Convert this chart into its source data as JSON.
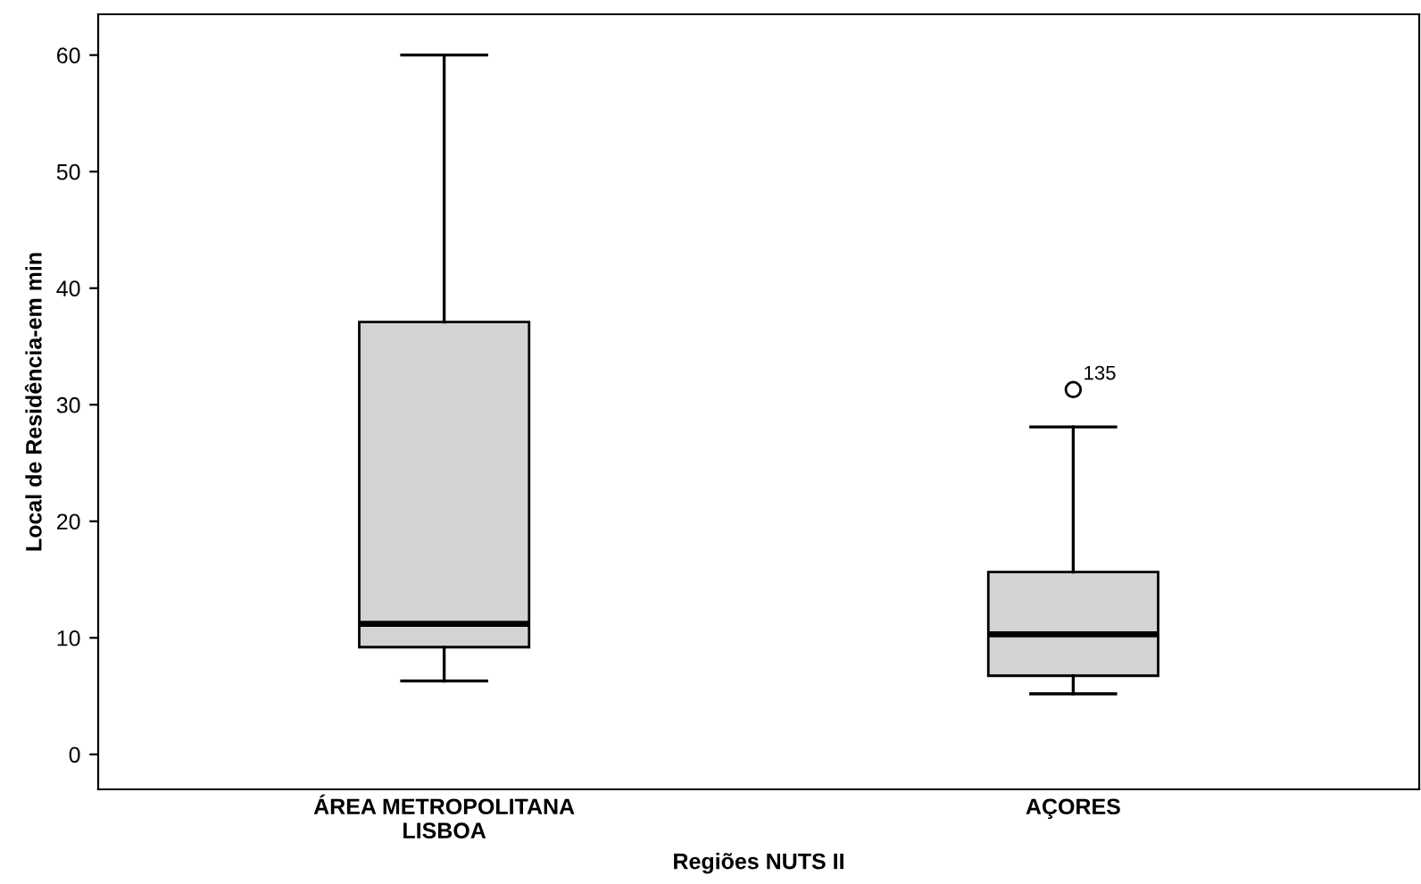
{
  "chart_data": {
    "type": "box",
    "xlabel": "Regiões NUTS II",
    "ylabel": "Local de Residência-em min",
    "categories": [
      "ÁREA METROPOLITANA\nLISBOA",
      "AÇORES"
    ],
    "boxes": [
      {
        "low": 6.3,
        "q1": 9.2,
        "median": 11.2,
        "q3": 37.1,
        "high": 60
      },
      {
        "low": 5.2,
        "q1": 6.75,
        "median": 10.3,
        "q3": 15.65,
        "high": 28.1,
        "outliers": [
          31.3
        ]
      }
    ],
    "color": "#d3d3d3",
    "ylim": [
      -3,
      63.5
    ],
    "yticks": [
      0,
      10,
      20,
      30,
      40,
      50,
      60
    ],
    "grid": false,
    "annotations": [
      "135"
    ]
  }
}
